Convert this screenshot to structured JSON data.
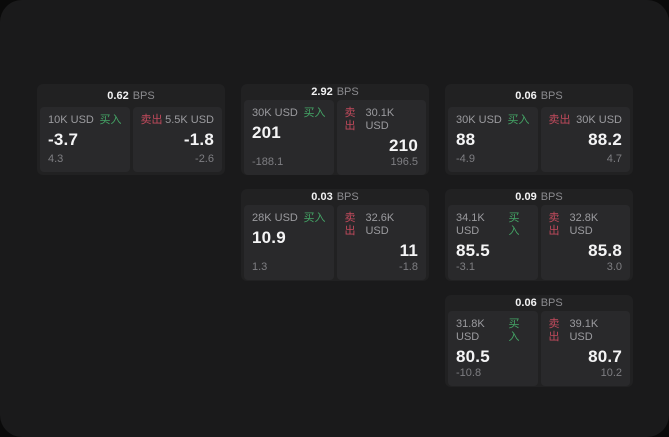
{
  "labels": {
    "bps_unit": "BPS",
    "buy": "买入",
    "sell": "卖出"
  },
  "colors": {
    "buy": "#44a566",
    "sell": "#c14a5c",
    "panel": "#1a1a1b",
    "card": "#212122",
    "cell": "#29292b"
  },
  "cards": [
    {
      "bps": "0.62",
      "buy": {
        "amount": "10K USD",
        "value": "-3.7",
        "sub": "4.3"
      },
      "sell": {
        "amount": "5.5K USD",
        "value": "-1.8",
        "sub": "-2.6"
      }
    },
    {
      "bps": "2.92",
      "buy": {
        "amount": "30K USD",
        "value": "201",
        "sub": "-188.1"
      },
      "sell": {
        "amount": "30.1K USD",
        "value": "210",
        "sub": "196.5"
      }
    },
    {
      "bps": "0.06",
      "buy": {
        "amount": "30K USD",
        "value": "88",
        "sub": "-4.9"
      },
      "sell": {
        "amount": "30K USD",
        "value": "88.2",
        "sub": "4.7"
      }
    },
    {
      "bps": "0.03",
      "buy": {
        "amount": "28K USD",
        "value": "10.9",
        "sub": "1.3"
      },
      "sell": {
        "amount": "32.6K USD",
        "value": "11",
        "sub": "-1.8"
      }
    },
    {
      "bps": "0.09",
      "buy": {
        "amount": "34.1K USD",
        "value": "85.5",
        "sub": "-3.1"
      },
      "sell": {
        "amount": "32.8K USD",
        "value": "85.8",
        "sub": "3.0"
      }
    },
    {
      "bps": "0.06",
      "buy": {
        "amount": "31.8K USD",
        "value": "80.5",
        "sub": "-10.8"
      },
      "sell": {
        "amount": "39.1K USD",
        "value": "80.7",
        "sub": "10.2"
      }
    }
  ]
}
